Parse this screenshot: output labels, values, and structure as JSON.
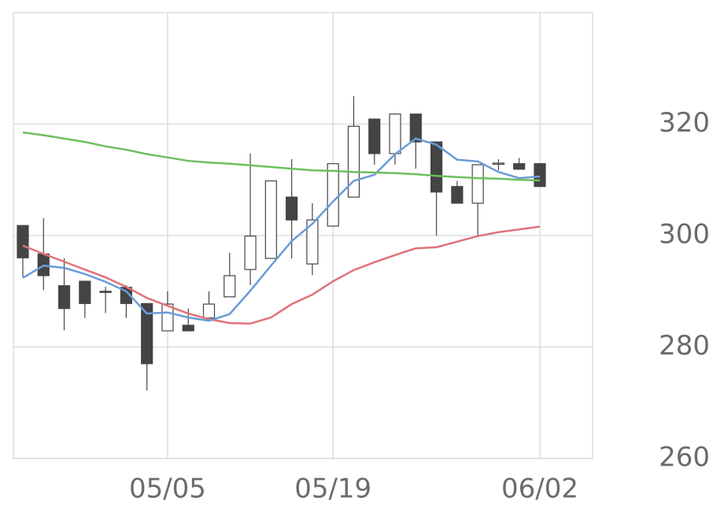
{
  "chart_data": {
    "type": "candlestick",
    "categories": [
      null,
      null,
      null,
      null,
      null,
      null,
      null,
      "05/05",
      null,
      null,
      null,
      null,
      null,
      null,
      null,
      "05/19",
      null,
      null,
      null,
      null,
      null,
      null,
      null,
      null,
      null,
      "06/02"
    ],
    "open": [
      301.8,
      296.7,
      291.0,
      291.8,
      290.0,
      290.7,
      287.8,
      282.9,
      283.9,
      285.2,
      289.0,
      293.9,
      295.9,
      306.9,
      294.9,
      301.7,
      306.9,
      320.9,
      314.7,
      321.8,
      316.8,
      308.8,
      305.8,
      312.9,
      312.9,
      312.9
    ],
    "high": [
      301.8,
      303.1,
      295.9,
      291.8,
      290.8,
      291.1,
      287.8,
      290.0,
      286.9,
      290.0,
      296.9,
      314.7,
      309.8,
      313.7,
      305.8,
      312.9,
      325.0,
      320.9,
      321.8,
      321.8,
      316.8,
      309.8,
      312.7,
      313.7,
      313.9,
      312.9
    ],
    "low": [
      292.5,
      290.2,
      283.0,
      285.2,
      286.1,
      285.2,
      272.2,
      282.9,
      282.9,
      285.2,
      289.0,
      291.1,
      295.9,
      295.9,
      292.9,
      301.7,
      306.9,
      312.7,
      312.7,
      312.0,
      300.0,
      305.8,
      300.0,
      311.7,
      311.9,
      308.8
    ],
    "close": [
      296.0,
      292.8,
      286.9,
      287.8,
      289.8,
      287.8,
      277.0,
      287.7,
      282.9,
      287.7,
      292.8,
      299.9,
      309.8,
      302.8,
      302.8,
      312.9,
      319.6,
      314.7,
      321.8,
      316.8,
      307.8,
      305.8,
      312.7,
      313.0,
      311.9,
      308.8
    ],
    "bull_color": "#ffffff",
    "bear_color": "#444444",
    "lines": [
      {
        "color": "#e0727a",
        "values": [
          298.2,
          296.7,
          295.3,
          293.9,
          292.5,
          290.8,
          288.8,
          287.4,
          286.0,
          285.0,
          284.3,
          284.2,
          285.3,
          287.7,
          289.4,
          291.8,
          293.8,
          295.2,
          296.5,
          297.7,
          297.9,
          298.9,
          299.9,
          300.6,
          301.1,
          301.6
        ]
      },
      {
        "color": "#6a9bd8",
        "values": [
          292.4,
          294.6,
          294.2,
          293.1,
          291.7,
          290.0,
          286.0,
          286.2,
          285.3,
          284.7,
          285.9,
          290.1,
          294.6,
          299.0,
          302.1,
          306.1,
          309.8,
          310.9,
          314.6,
          317.4,
          316.3,
          313.6,
          313.3,
          311.4,
          310.3,
          310.6
        ]
      },
      {
        "color": "#6cbf5e",
        "values": [
          318.5,
          318.0,
          317.4,
          316.8,
          316.0,
          315.4,
          314.6,
          314.0,
          313.4,
          313.1,
          312.9,
          312.6,
          312.3,
          312.0,
          311.7,
          311.6,
          311.4,
          311.3,
          311.2,
          311.0,
          310.7,
          310.5,
          310.3,
          310.2,
          310.0,
          309.9
        ]
      }
    ],
    "ylim": [
      260,
      340
    ],
    "yticks": [
      260,
      280,
      300,
      320
    ],
    "grid": true
  }
}
